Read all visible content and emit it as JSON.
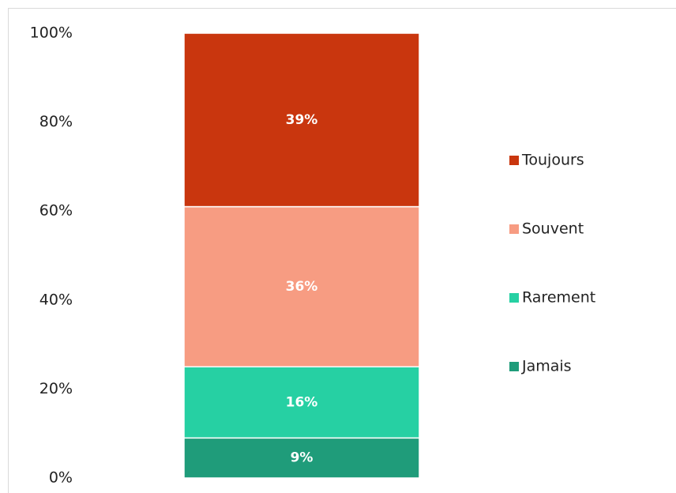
{
  "chart_data": {
    "type": "stacked_bar",
    "categories": [
      null
    ],
    "series": [
      {
        "name": "Jamais",
        "color": "#1f9c7a",
        "values": [
          9
        ],
        "value_labels": [
          "9%"
        ]
      },
      {
        "name": "Rarement",
        "color": "#26d0a3",
        "values": [
          16
        ],
        "value_labels": [
          "16%"
        ]
      },
      {
        "name": "Souvent",
        "color": "#f79c82",
        "values": [
          36
        ],
        "value_labels": [
          "36%"
        ]
      },
      {
        "name": "Toujours",
        "color": "#c9360e",
        "values": [
          39
        ],
        "value_labels": [
          "39%"
        ]
      }
    ],
    "ylim": [
      0,
      100
    ],
    "yticks": [
      {
        "value": 0,
        "label": "0%"
      },
      {
        "value": 20,
        "label": "20%"
      },
      {
        "value": 40,
        "label": "40%"
      },
      {
        "value": 60,
        "label": "60%"
      },
      {
        "value": 80,
        "label": "80%"
      },
      {
        "value": 100,
        "label": "100%"
      }
    ],
    "legend": "right"
  }
}
